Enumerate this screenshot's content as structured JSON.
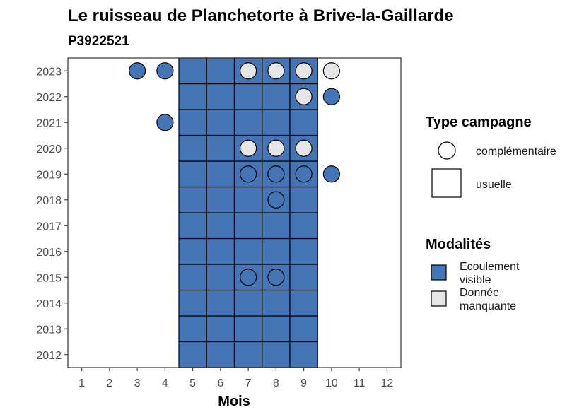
{
  "colors": {
    "ecoulement_visible": "#4575b4",
    "donnee_manquante": "#e6e6e6",
    "outline": "#000000",
    "panel_border": "#333333"
  },
  "chart_data": {
    "type": "heatmap",
    "title": "Le ruisseau de Planchetorte à Brive-la-Gaillarde",
    "subtitle": "P3922521",
    "xlabel": "Mois",
    "ylabel": "",
    "x_ticks": [
      "1",
      "2",
      "3",
      "4",
      "5",
      "6",
      "7",
      "8",
      "9",
      "10",
      "11",
      "12"
    ],
    "y_ticks": [
      "2012",
      "2013",
      "2014",
      "2015",
      "2016",
      "2017",
      "2018",
      "2019",
      "2020",
      "2021",
      "2022",
      "2023"
    ],
    "xlim": [
      0.5,
      12.5
    ],
    "ylim": [
      2011.5,
      2023.5
    ],
    "grid": false,
    "usuelle_months": [
      5,
      6,
      7,
      8,
      9
    ],
    "usuelle_years": [
      2012,
      2013,
      2014,
      2015,
      2016,
      2017,
      2018,
      2019,
      2020,
      2021,
      2022,
      2023
    ],
    "usuelle_modalite": "Ecoulement visible",
    "complementaire": [
      {
        "year": 2023,
        "month": 3,
        "modalite": "Ecoulement visible"
      },
      {
        "year": 2023,
        "month": 4,
        "modalite": "Ecoulement visible"
      },
      {
        "year": 2023,
        "month": 7,
        "modalite": "Donnée manquante"
      },
      {
        "year": 2023,
        "month": 8,
        "modalite": "Donnée manquante"
      },
      {
        "year": 2023,
        "month": 9,
        "modalite": "Donnée manquante"
      },
      {
        "year": 2023,
        "month": 10,
        "modalite": "Donnée manquante"
      },
      {
        "year": 2022,
        "month": 9,
        "modalite": "Donnée manquante"
      },
      {
        "year": 2022,
        "month": 10,
        "modalite": "Ecoulement visible"
      },
      {
        "year": 2021,
        "month": 4,
        "modalite": "Ecoulement visible"
      },
      {
        "year": 2020,
        "month": 7,
        "modalite": "Donnée manquante"
      },
      {
        "year": 2020,
        "month": 8,
        "modalite": "Donnée manquante"
      },
      {
        "year": 2020,
        "month": 9,
        "modalite": "Donnée manquante"
      },
      {
        "year": 2019,
        "month": 7,
        "modalite": "Ecoulement visible"
      },
      {
        "year": 2019,
        "month": 8,
        "modalite": "Ecoulement visible"
      },
      {
        "year": 2019,
        "month": 9,
        "modalite": "Ecoulement visible"
      },
      {
        "year": 2019,
        "month": 10,
        "modalite": "Ecoulement visible"
      },
      {
        "year": 2018,
        "month": 8,
        "modalite": "Ecoulement visible"
      },
      {
        "year": 2015,
        "month": 7,
        "modalite": "Ecoulement visible"
      },
      {
        "year": 2015,
        "month": 8,
        "modalite": "Ecoulement visible"
      }
    ],
    "legend": {
      "placement": "right",
      "type_title": "Type campagne",
      "type_items": [
        "complémentaire",
        "usuelle"
      ],
      "modalites_title": "Modalités",
      "modalites_items": [
        {
          "label_lines": [
            "Ecoulement",
            "visible"
          ],
          "key": "ecoulement_visible"
        },
        {
          "label_lines": [
            "Donnée",
            "manquante"
          ],
          "key": "donnee_manquante"
        }
      ]
    }
  }
}
